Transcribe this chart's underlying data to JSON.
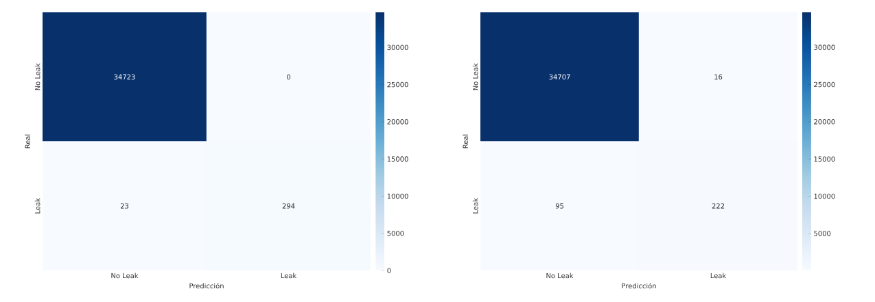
{
  "chart_data": [
    {
      "type": "heatmap",
      "xlabel": "Predicción",
      "ylabel": "Real",
      "categories": [
        "No Leak",
        "Leak"
      ],
      "y_categories": [
        "No Leak",
        "Leak"
      ],
      "cells": [
        [
          34723,
          0
        ],
        [
          23,
          294
        ]
      ],
      "data_labels": true,
      "clim": [
        0,
        34723
      ],
      "cticks": [
        0,
        5000,
        10000,
        15000,
        20000,
        25000,
        30000
      ]
    },
    {
      "type": "heatmap",
      "xlabel": "Predicción",
      "ylabel": "Real",
      "categories": [
        "No Leak",
        "Leak"
      ],
      "y_categories": [
        "No Leak",
        "Leak"
      ],
      "cells": [
        [
          34707,
          16
        ],
        [
          95,
          222
        ]
      ],
      "data_labels": true,
      "clim": [
        16,
        34707
      ],
      "cticks": [
        5000,
        10000,
        15000,
        20000,
        25000,
        30000
      ]
    }
  ]
}
